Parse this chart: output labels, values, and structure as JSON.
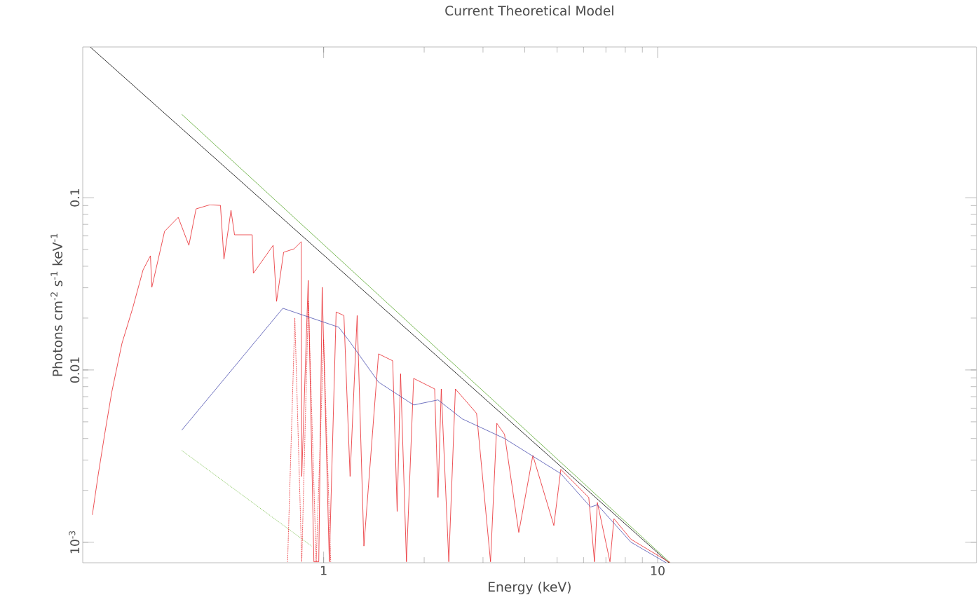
{
  "chart_data": {
    "type": "line",
    "title": "Current Theoretical Model",
    "xlabel": "Energy (keV)",
    "ylabel": "Photons cm$^{-2}$ s$^{-1}$ keV$^{-1}$",
    "log": "xy",
    "marker": "none",
    "xlim": [
      0.19,
      90
    ],
    "ylim": [
      0.00076,
      0.75
    ],
    "xticks": [
      1,
      10
    ],
    "yticks": [
      {
        "value": 0.001,
        "label": "10$^{-3}$"
      },
      0.01,
      0.1
    ],
    "series": [
      {
        "color": "#000000",
        "line_style": "solid",
        "x": [
          0.2,
          10.8
        ],
        "values": [
          0.75,
          0.00076
        ]
      },
      {
        "color": "#5aa830",
        "line_style": "solid",
        "x": [
          0.376,
          10.9
        ],
        "values": [
          0.305,
          0.00076
        ]
      },
      {
        "color": "#7cc050",
        "line_style": "dotted",
        "x": [
          0.376,
          0.92
        ],
        "values": [
          0.00341,
          0.00095
        ]
      },
      {
        "color": "#e8262b",
        "line_style": "dotted",
        "x": [
          0.78,
          0.82,
          0.86,
          0.9,
          0.95,
          1.0,
          1.05
        ],
        "values": [
          0.00077,
          0.02,
          0.00077,
          0.025,
          0.00077,
          0.015,
          0.00077
        ]
      },
      {
        "color": "#e8262b",
        "line_style": "solid",
        "x": [
          0.203,
          0.211,
          0.221,
          0.232,
          0.249,
          0.268,
          0.288,
          0.303,
          0.306,
          0.334,
          0.367,
          0.395,
          0.415,
          0.457,
          0.491,
          0.503,
          0.528,
          0.541,
          0.611,
          0.616,
          0.706,
          0.723,
          0.759,
          0.816,
          0.857,
          0.86,
          0.899,
          0.935,
          0.967,
          0.99,
          1.04,
          1.09,
          1.15,
          1.2,
          1.26,
          1.32,
          1.46,
          1.61,
          1.66,
          1.7,
          1.77,
          1.86,
          2.15,
          2.2,
          2.25,
          2.37,
          2.48,
          2.87,
          3.16,
          3.3,
          3.48,
          3.84,
          4.23,
          4.89,
          5.13,
          6.22,
          6.47,
          6.6,
          7.2,
          7.4,
          8.32,
          10.9
        ],
        "values": [
          0.00144,
          0.00241,
          0.00423,
          0.00741,
          0.01426,
          0.0228,
          0.0381,
          0.046,
          0.0302,
          0.0638,
          0.0769,
          0.0529,
          0.0861,
          0.091,
          0.0902,
          0.0439,
          0.0845,
          0.0609,
          0.0609,
          0.0364,
          0.0529,
          0.025,
          0.0482,
          0.0505,
          0.0555,
          0.00241,
          0.0331,
          0.00077,
          0.00077,
          0.0302,
          0.00077,
          0.0217,
          0.0207,
          0.00241,
          0.0207,
          0.00095,
          0.0124,
          0.0113,
          0.00151,
          0.0095,
          0.00077,
          0.00893,
          0.00776,
          0.00182,
          0.00776,
          0.00077,
          0.00776,
          0.0056,
          0.00077,
          0.0049,
          0.00423,
          0.00114,
          0.00319,
          0.00125,
          0.00265,
          0.00182,
          0.00077,
          0.0017,
          0.00077,
          0.00137,
          0.00104,
          0.00076
        ]
      },
      {
        "color": "#4b4fb0",
        "line_style": "solid",
        "x": [
          0.376,
          0.755,
          1.11,
          1.2,
          1.46,
          1.86,
          2.2,
          2.6,
          3.48,
          5.13,
          6.3,
          6.6,
          8.32,
          10.6
        ],
        "values": [
          0.00447,
          0.0228,
          0.0177,
          0.0145,
          0.0085,
          0.00626,
          0.0067,
          0.0052,
          0.004,
          0.0025,
          0.0016,
          0.00165,
          0.001,
          0.00076
        ]
      }
    ]
  }
}
